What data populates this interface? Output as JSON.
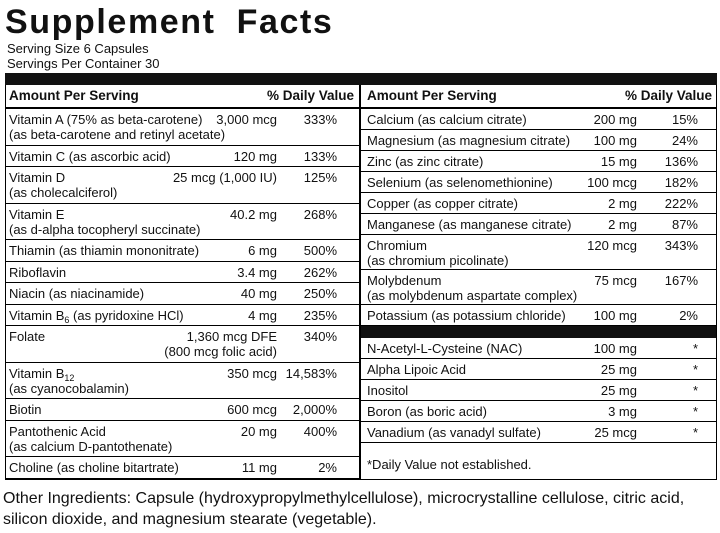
{
  "title": "Supplement Facts",
  "serving": {
    "size": "Serving Size 6 Capsules",
    "per_container": "Servings Per Container 30"
  },
  "columns": [
    {
      "header": {
        "amount": "Amount Per Serving",
        "dv": "% Daily Value"
      },
      "rows": [
        {
          "name": [
            "Vitamin A (75% as beta-carotene)",
            "(as beta-carotene and retinyl acetate)"
          ],
          "amount": "3,000 mcg",
          "dv": "333%"
        },
        {
          "name": [
            "Vitamin C (as ascorbic acid)"
          ],
          "amount": "120 mg",
          "dv": "133%"
        },
        {
          "name": [
            "Vitamin D",
            "(as cholecalciferol)"
          ],
          "amount": "25 mcg (1,000 IU)",
          "dv": "125%"
        },
        {
          "name": [
            "Vitamin E",
            "(as d-alpha tocopheryl succinate)"
          ],
          "amount": "40.2 mg",
          "dv": "268%"
        },
        {
          "name": [
            "Thiamin (as thiamin mononitrate)"
          ],
          "amount": "6 mg",
          "dv": "500%"
        },
        {
          "name": [
            "Riboflavin"
          ],
          "amount": "3.4 mg",
          "dv": "262%"
        },
        {
          "name": [
            "Niacin (as niacinamide)"
          ],
          "amount": "40 mg",
          "dv": "250%"
        },
        {
          "name": [
            {
              "text": "Vitamin B",
              "sub": "6",
              "rest": " (as pyridoxine HCl)"
            }
          ],
          "amount": "4 mg",
          "dv": "235%"
        },
        {
          "name": [
            "Folate"
          ],
          "amount": "1,360 mcg DFE",
          "amount_note": "(800 mcg folic acid)",
          "dv": "340%"
        },
        {
          "name": [
            {
              "text": "Vitamin B",
              "sub": "12"
            },
            "(as cyanocobalamin)"
          ],
          "amount": "350 mcg",
          "dv": "14,583%"
        },
        {
          "name": [
            "Biotin"
          ],
          "amount": "600 mcg",
          "dv": "2,000%"
        },
        {
          "name": [
            "Pantothenic Acid",
            "(as calcium D-pantothenate)"
          ],
          "amount": "20 mg",
          "dv": "400%"
        },
        {
          "name": [
            "Choline (as choline bitartrate)"
          ],
          "amount": "11 mg",
          "dv": "2%"
        }
      ]
    },
    {
      "header": {
        "amount": "Amount Per Serving",
        "dv": "% Daily Value"
      },
      "rows": [
        {
          "name": [
            "Calcium (as calcium citrate)"
          ],
          "amount": "200 mg",
          "dv": "15%"
        },
        {
          "name": [
            "Magnesium (as magnesium citrate)"
          ],
          "amount": "100 mg",
          "dv": "24%"
        },
        {
          "name": [
            "Zinc (as zinc citrate)"
          ],
          "amount": "15 mg",
          "dv": "136%"
        },
        {
          "name": [
            "Selenium (as selenomethionine)"
          ],
          "amount": "100 mcg",
          "dv": "182%"
        },
        {
          "name": [
            "Copper (as copper citrate)"
          ],
          "amount": "2 mg",
          "dv": "222%"
        },
        {
          "name": [
            "Manganese (as manganese citrate)"
          ],
          "amount": "2 mg",
          "dv": "87%"
        },
        {
          "name": [
            "Chromium",
            "(as chromium picolinate)"
          ],
          "amount": "120 mcg",
          "dv": "343%"
        },
        {
          "name": [
            "Molybdenum",
            "(as molybdenum aspartate complex)"
          ],
          "amount": "75 mcg",
          "dv": "167%"
        },
        {
          "name": [
            "Potassium (as potassium chloride)"
          ],
          "amount": "100 mg",
          "dv": "2%"
        }
      ],
      "extra_rows": [
        {
          "name": [
            "N-Acetyl-L-Cysteine (NAC)"
          ],
          "amount": "100 mg",
          "dv": "*"
        },
        {
          "name": [
            "Alpha Lipoic Acid"
          ],
          "amount": "25 mg",
          "dv": "*"
        },
        {
          "name": [
            "Inositol"
          ],
          "amount": "25 mg",
          "dv": "*"
        },
        {
          "name": [
            "Boron (as boric acid)"
          ],
          "amount": "3 mg",
          "dv": "*"
        },
        {
          "name": [
            "Vanadium (as vanadyl sulfate)"
          ],
          "amount": "25 mcg",
          "dv": "*"
        }
      ],
      "footnote": "*Daily Value not established."
    }
  ],
  "other_ingredients": "Other Ingredients: Capsule (hydroxypropylmethylcellulose), microcrystalline cellulose, citric acid, silicon dioxide, and magnesium stearate (vegetable)."
}
